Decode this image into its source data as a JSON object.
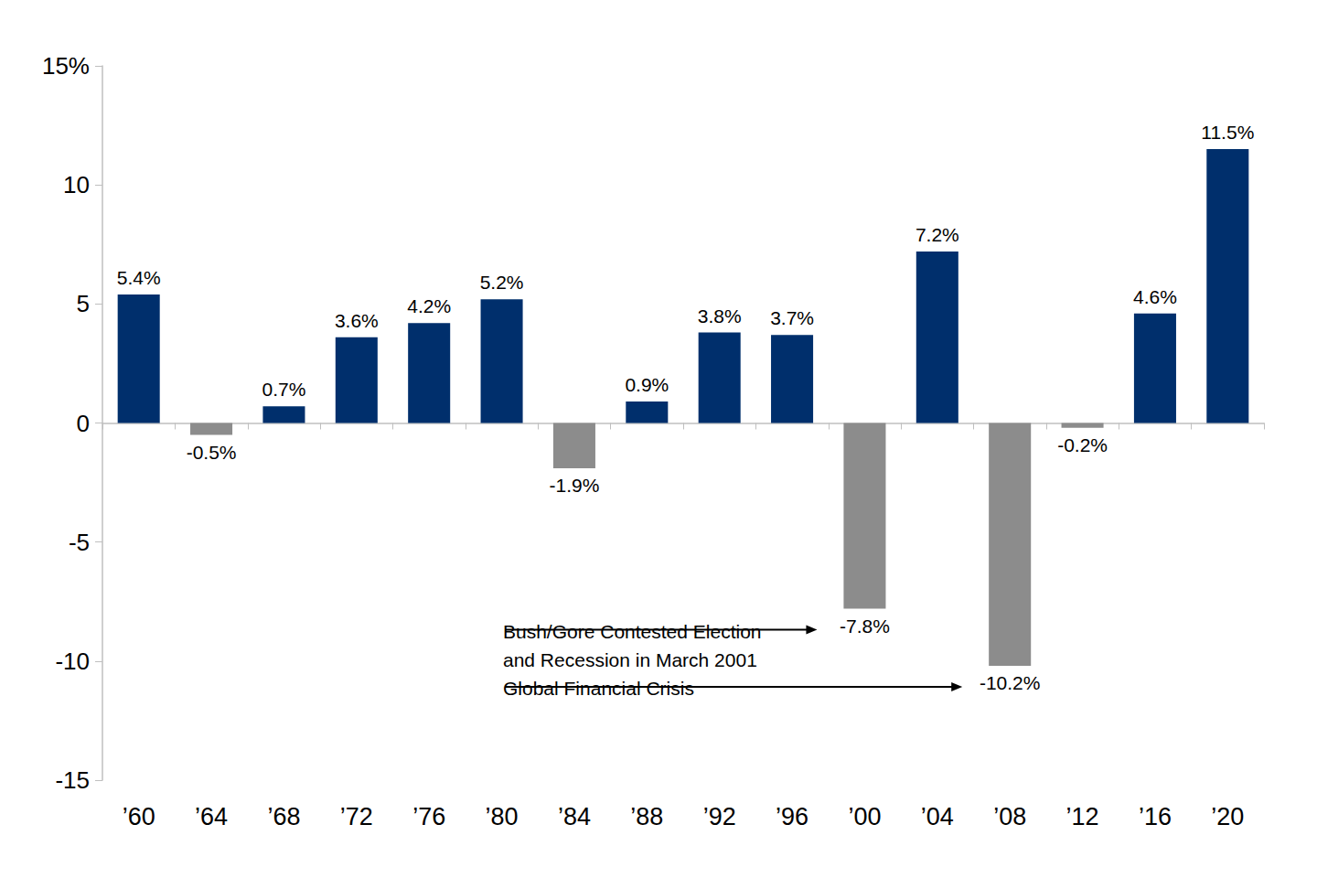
{
  "chart_data": {
    "type": "bar",
    "categories": [
      "’60",
      "’64",
      "’68",
      "’72",
      "’76",
      "’80",
      "’84",
      "’88",
      "’92",
      "’96",
      "’00",
      "’04",
      "’08",
      "’12",
      "’16",
      "’20"
    ],
    "values": [
      5.4,
      -0.5,
      0.7,
      3.6,
      4.2,
      5.2,
      -1.9,
      0.9,
      3.8,
      3.7,
      -7.8,
      7.2,
      -10.2,
      -0.2,
      4.6,
      11.5
    ],
    "value_labels": [
      "5.4%",
      "-0.5%",
      "0.7%",
      "3.6%",
      "4.2%",
      "5.2%",
      "-1.9%",
      "0.9%",
      "3.8%",
      "3.7%",
      "-7.8%",
      "7.2%",
      "-10.2%",
      "-0.2%",
      "4.6%",
      "11.5%"
    ],
    "colors": [
      "#002f6c",
      "#8c8c8c",
      "#002f6c",
      "#002f6c",
      "#002f6c",
      "#002f6c",
      "#8c8c8c",
      "#002f6c",
      "#002f6c",
      "#002f6c",
      "#8c8c8c",
      "#002f6c",
      "#8c8c8c",
      "#8c8c8c",
      "#002f6c",
      "#002f6c"
    ],
    "ylim": [
      -15,
      15
    ],
    "yticks": [
      -15,
      -10,
      -5,
      0,
      5,
      10,
      {
        "value": 15,
        "label": "15%"
      }
    ],
    "grid": false,
    "data_labels": true,
    "annotations": [
      {
        "text": "Bush/Gore Contested Election\nand Recession in March 2001",
        "category": "’00"
      },
      {
        "text": "Global Financial Crisis",
        "category": "’08"
      }
    ]
  }
}
